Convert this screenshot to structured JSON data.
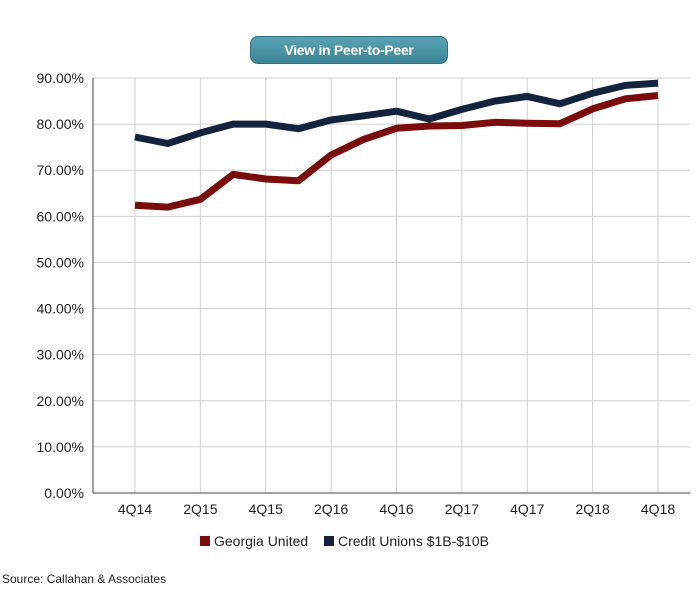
{
  "button": {
    "label": "View in Peer-to-Peer"
  },
  "source": "Source: Callahan & Associates",
  "colors": {
    "series1": "#7a0c0c",
    "series2": "#14233d",
    "grid": "#d0d0d0",
    "axis": "#444444"
  },
  "chart_data": {
    "type": "line",
    "categories": [
      "4Q14",
      "1Q15",
      "2Q15",
      "3Q15",
      "4Q15",
      "1Q16",
      "2Q16",
      "3Q16",
      "4Q16",
      "1Q17",
      "2Q17",
      "3Q17",
      "4Q17",
      "1Q18",
      "2Q18",
      "3Q18",
      "4Q18"
    ],
    "x_tick_labels": [
      "4Q14",
      "2Q15",
      "4Q15",
      "2Q16",
      "4Q16",
      "2Q17",
      "4Q17",
      "2Q18",
      "4Q18"
    ],
    "y_tick_labels": [
      "0.00%",
      "10.00%",
      "20.00%",
      "30.00%",
      "40.00%",
      "50.00%",
      "60.00%",
      "70.00%",
      "80.00%",
      "90.00%"
    ],
    "ylim": [
      0,
      90
    ],
    "grid": true,
    "legend_position": "bottom",
    "series": [
      {
        "name": "Georgia United",
        "color": "#7a0c0c",
        "values": [
          62.4,
          62.0,
          63.7,
          69.1,
          68.1,
          67.7,
          73.3,
          76.7,
          79.1,
          79.6,
          79.7,
          80.4,
          80.2,
          80.1,
          83.3,
          85.5,
          86.2
        ]
      },
      {
        "name": "Credit Unions $1B-$10B",
        "color": "#14233d",
        "values": [
          77.2,
          75.8,
          78.1,
          80.0,
          80.0,
          79.0,
          80.9,
          81.8,
          82.8,
          81.1,
          83.2,
          85.0,
          86.0,
          84.4,
          86.7,
          88.4,
          88.9
        ]
      }
    ]
  }
}
